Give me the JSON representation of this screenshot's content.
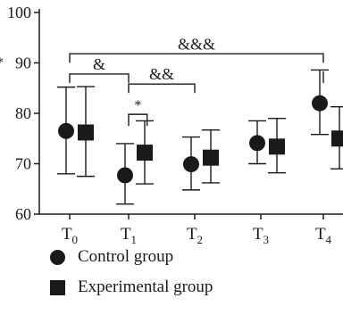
{
  "chart_data": {
    "type": "scatter",
    "categories": [
      {
        "main": "T",
        "sub": "0"
      },
      {
        "main": "T",
        "sub": "1"
      },
      {
        "main": "T",
        "sub": "2"
      },
      {
        "main": "T",
        "sub": "3"
      },
      {
        "main": "T",
        "sub": "4"
      }
    ],
    "ylim": [
      60,
      100
    ],
    "yticks": [
      60,
      70,
      80,
      90,
      100
    ],
    "series": [
      {
        "name": "Control group",
        "marker": "circle",
        "values": [
          76.5,
          67.7,
          69.9,
          74.1,
          82.0
        ],
        "lower": [
          68.0,
          62.0,
          64.8,
          70.0,
          75.8
        ],
        "upper": [
          85.2,
          74.0,
          75.3,
          78.5,
          88.6
        ]
      },
      {
        "name": "Experimental group",
        "marker": "square",
        "values": [
          76.2,
          72.2,
          71.2,
          73.4,
          75.0
        ],
        "lower": [
          67.5,
          66.0,
          66.2,
          68.2,
          69.0
        ],
        "upper": [
          85.3,
          78.5,
          76.7,
          79.0,
          81.3
        ]
      }
    ],
    "annotations": [
      {
        "label": "&",
        "from": 0,
        "to": 1,
        "y": 87.8
      },
      {
        "label": "&&",
        "from": 1,
        "to": 2,
        "y": 85.8
      },
      {
        "label": "&&&",
        "from": 0,
        "to": 4,
        "y": 91.8
      },
      {
        "label": "*",
        "from": 1,
        "to": 1.28,
        "y": 79.8,
        "drop_to": 77.5
      },
      {
        "label": "*",
        "from": 4,
        "to": 4.28,
        "y": 88.3,
        "drop_to": 86.0
      }
    ],
    "legend_position": "bottom-left",
    "colors": {
      "ink": "#1a1a1a"
    }
  }
}
